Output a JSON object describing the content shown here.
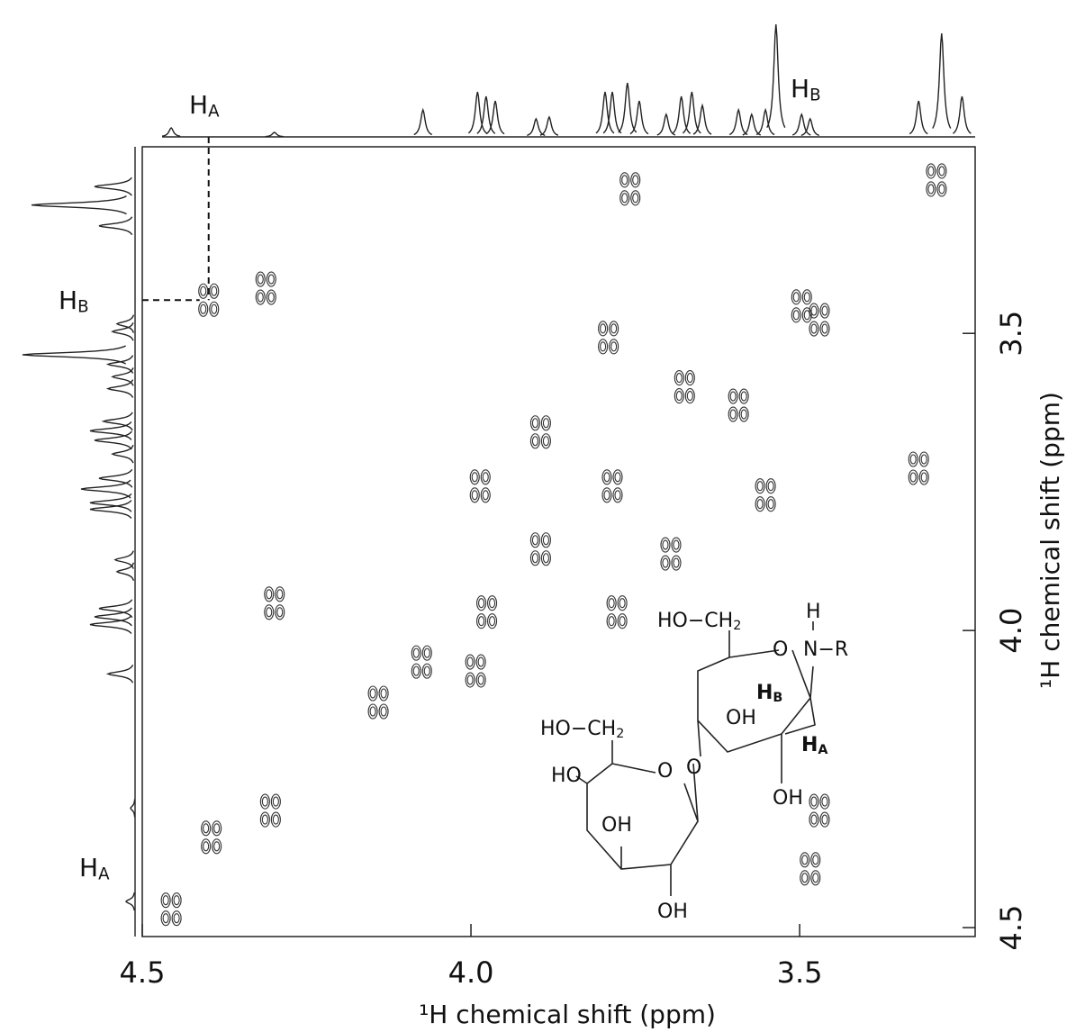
{
  "chart_data": {
    "type": "contour",
    "xlabel": "¹H chemical shift (ppm)",
    "ylabel": "¹H chemical shift (ppm)",
    "xlim": [
      4.5,
      3.233
    ],
    "ylim": [
      3.186,
      4.515
    ],
    "xticks": [
      4.5,
      {
        "value": 4,
        "label": "4.0"
      },
      3.5
    ],
    "yticks": [
      3.5,
      {
        "value": 4,
        "label": "4.0"
      },
      4.5
    ],
    "color": "#333333",
    "x": [
      4.399,
      4.312,
      3.758,
      3.292,
      3.497,
      3.675,
      3.791,
      3.894,
      3.986,
      3.894,
      3.785,
      3.696,
      3.552,
      3.319,
      3.976,
      3.778,
      4.075,
      3.993,
      4.299,
      4.305,
      4.395,
      4.456,
      3.484,
      3.47,
      4.141,
      3.593,
      3.47
    ],
    "values": [
      3.444,
      3.424,
      3.257,
      3.242,
      3.454,
      3.59,
      3.507,
      3.666,
      3.757,
      3.863,
      3.757,
      3.871,
      3.772,
      3.727,
      3.969,
      3.969,
      4.053,
      4.068,
      3.954,
      4.303,
      4.348,
      4.469,
      4.401,
      4.303,
      4.121,
      3.621,
      3.477
    ],
    "projection": {
      "x": [
        4.456,
        4.299,
        4.073,
        3.99,
        3.977,
        3.963,
        3.901,
        3.881,
        3.796,
        3.785,
        3.762,
        3.744,
        3.703,
        3.68,
        3.664,
        3.648,
        3.593,
        3.573,
        3.552,
        3.536,
        3.497,
        3.484,
        3.319,
        3.284,
        3.253
      ],
      "values": [
        10,
        5,
        30,
        50,
        45,
        40,
        20,
        22,
        50,
        50,
        60,
        40,
        25,
        45,
        50,
        35,
        30,
        25,
        30,
        125,
        25,
        20,
        40,
        115,
        45
      ]
    },
    "annotations": [
      {
        "text": "H",
        "sub": "A"
      },
      {
        "text": "H",
        "sub": "B"
      },
      {
        "text": "H",
        "sub": "B"
      },
      {
        "text": "H",
        "sub": "A"
      }
    ]
  },
  "structure": {
    "labels": [
      {
        "text": "HO−CH",
        "sub": "2"
      },
      {
        "text": "H"
      },
      {
        "text": "O"
      },
      {
        "text": "N−R"
      },
      {
        "text": "H",
        "sub": "B"
      },
      {
        "text": "OH"
      },
      {
        "text": "H",
        "sub": "A"
      },
      {
        "text": "O"
      },
      {
        "text": "HO−CH",
        "sub": "2"
      },
      {
        "text": "O"
      },
      {
        "text": "HO"
      },
      {
        "text": "OH"
      },
      {
        "text": "OH"
      },
      {
        "text": "OH"
      }
    ]
  }
}
